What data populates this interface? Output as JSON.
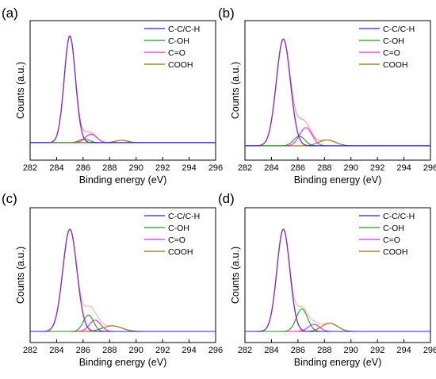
{
  "chart_data": [
    {
      "type": "line",
      "panel_label": "(a)",
      "xlabel": "Binding energy (eV)",
      "ylabel": "Counts (a.u.)",
      "xlim": [
        282,
        296
      ],
      "x_ticks": [
        "282",
        "284",
        "286",
        "288",
        "290",
        "292",
        "294",
        "296"
      ],
      "y_ticks": "none",
      "grid": false,
      "legend": "top-right",
      "baseline": 0.06,
      "series": [
        {
          "name": "C-C/C-H",
          "color": "#2020ee",
          "peak": {
            "center": 285.0,
            "height": 1.0,
            "fwhm": 1.0
          }
        },
        {
          "name": "C-OH",
          "color": "#1a9a1a",
          "peak": {
            "center": 286.1,
            "height": 0.035,
            "fwhm": 0.9
          }
        },
        {
          "name": "C=O",
          "color": "#ee22ee",
          "peak": {
            "center": 286.6,
            "height": 0.08,
            "fwhm": 1.0
          }
        },
        {
          "name": "COOH",
          "color": "#8b7000",
          "peak": {
            "center": 288.9,
            "height": 0.022,
            "fwhm": 1.1
          }
        }
      ],
      "envelope": {
        "color": "#f08a8a",
        "rises_to": 1.0
      }
    },
    {
      "type": "line",
      "panel_label": "(b)",
      "xlabel": "Binding energy (eV)",
      "ylabel": "Counts (a.u.)",
      "xlim": [
        282,
        296
      ],
      "x_ticks": [
        "282",
        "284",
        "286",
        "288",
        "290",
        "292",
        "294",
        "296"
      ],
      "y_ticks": "none",
      "grid": false,
      "legend": "top-right",
      "baseline": 0.03,
      "series": [
        {
          "name": "C-C/C-H",
          "color": "#2020ee",
          "peak": {
            "center": 284.9,
            "height": 1.0,
            "fwhm": 1.25
          }
        },
        {
          "name": "C-OH",
          "color": "#1a9a1a",
          "peak": {
            "center": 286.1,
            "height": 0.09,
            "fwhm": 1.0
          }
        },
        {
          "name": "C=O",
          "color": "#ee22ee",
          "peak": {
            "center": 286.6,
            "height": 0.17,
            "fwhm": 1.1
          }
        },
        {
          "name": "COOH",
          "color": "#8b7000",
          "peak": {
            "center": 288.2,
            "height": 0.055,
            "fwhm": 1.5
          }
        }
      ],
      "envelope": {
        "color": "#f08a8a",
        "rises_to": 1.0
      }
    },
    {
      "type": "line",
      "panel_label": "(c)",
      "xlabel": "Binding energy (eV)",
      "ylabel": "Counts (a.u.)",
      "xlim": [
        282,
        296
      ],
      "x_ticks": [
        "282",
        "284",
        "286",
        "288",
        "290",
        "292",
        "294",
        "296"
      ],
      "y_ticks": "none",
      "grid": false,
      "legend": "top-right",
      "baseline": 0.0,
      "series": [
        {
          "name": "C-C/C-H",
          "color": "#2020ee",
          "peak": {
            "center": 285.0,
            "height": 1.0,
            "fwhm": 1.25
          }
        },
        {
          "name": "C-OH",
          "color": "#1a9a1a",
          "peak": {
            "center": 286.4,
            "height": 0.16,
            "fwhm": 0.9
          }
        },
        {
          "name": "C=O",
          "color": "#ee22ee",
          "peak": {
            "center": 286.9,
            "height": 0.11,
            "fwhm": 1.0
          }
        },
        {
          "name": "COOH",
          "color": "#8b7000",
          "peak": {
            "center": 288.2,
            "height": 0.055,
            "fwhm": 1.7
          }
        }
      ],
      "envelope": {
        "color": "#f0b0a0",
        "rises_to": 1.0
      }
    },
    {
      "type": "line",
      "panel_label": "(d)",
      "xlabel": "Binding energy (eV)",
      "ylabel": "Counts (a.u.)",
      "xlim": [
        282,
        296
      ],
      "x_ticks": [
        "282",
        "284",
        "286",
        "288",
        "290",
        "292",
        "294",
        "296"
      ],
      "y_ticks": "none",
      "grid": false,
      "legend": "top-right",
      "baseline": 0.0,
      "series": [
        {
          "name": "C-C/C-H",
          "color": "#2020ee",
          "peak": {
            "center": 284.9,
            "height": 1.0,
            "fwhm": 1.15
          }
        },
        {
          "name": "C-OH",
          "color": "#1a9a1a",
          "peak": {
            "center": 286.3,
            "height": 0.22,
            "fwhm": 1.0
          }
        },
        {
          "name": "C=O",
          "color": "#ee22ee",
          "peak": {
            "center": 287.2,
            "height": 0.07,
            "fwhm": 1.0
          }
        },
        {
          "name": "COOH",
          "color": "#8b7000",
          "peak": {
            "center": 288.4,
            "height": 0.08,
            "fwhm": 1.4
          }
        }
      ],
      "envelope": {
        "color": "#f0b0a0",
        "rises_to": 1.0
      }
    }
  ]
}
